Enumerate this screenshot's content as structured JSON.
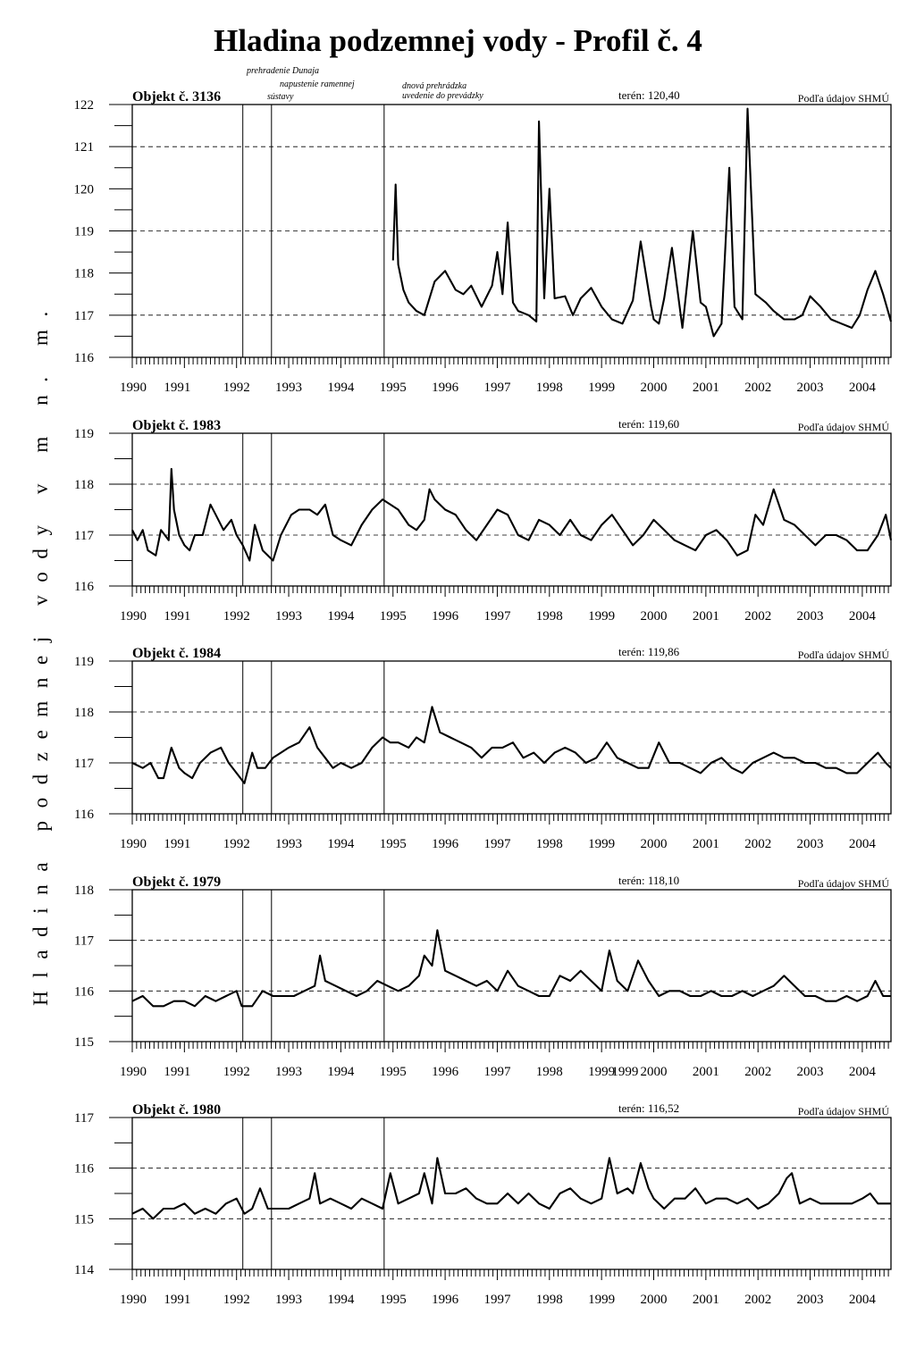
{
  "title": "Hladina podzemnej vody  - Profil č. 4",
  "ylabel": "Hladina podzemnej vody v m n. m.",
  "events": {
    "labels": [
      {
        "text": "prehradenie Dunaja",
        "x": 1992.583
      },
      {
        "text": "napustenie ramennej",
        "x": 1992.583
      },
      {
        "text": "sústavy",
        "x": 1992.583
      },
      {
        "text": "dnová prehrádzka",
        "x": 1995.0
      },
      {
        "text": "uvedenie do prevádzky",
        "x": 1995.0
      }
    ],
    "lines_x": [
      1992.12,
      1992.67,
      1994.83
    ]
  },
  "chart_data": [
    {
      "type": "line",
      "object": "Objekt č. 3136",
      "teren": "terén:  120,40",
      "source": "Podľa údajov SHMÚ",
      "ylim": [
        116,
        122
      ],
      "yticks": [
        "116",
        "117",
        "118",
        "119",
        "120",
        "121",
        "122"
      ],
      "grid_y": [
        117,
        119,
        121
      ],
      "xlim": [
        1990.0,
        2004.55
      ],
      "xticks": [
        "1990",
        "1991",
        "1992",
        "1993",
        "1994",
        "1995",
        "1996",
        "1997",
        "1998",
        "1999",
        "2000",
        "2001",
        "2002",
        "2003",
        "2004"
      ],
      "x": [
        1995.0,
        1995.05,
        1995.1,
        1995.2,
        1995.3,
        1995.45,
        1995.6,
        1995.8,
        1996.0,
        1996.2,
        1996.35,
        1996.5,
        1996.7,
        1996.9,
        1997.0,
        1997.1,
        1997.2,
        1997.3,
        1997.4,
        1997.6,
        1997.75,
        1997.8,
        1997.9,
        1998.0,
        1998.1,
        1998.3,
        1998.45,
        1998.6,
        1998.8,
        1999.0,
        1999.2,
        1999.4,
        1999.6,
        1999.75,
        1999.95,
        2000.0,
        2000.1,
        2000.2,
        2000.35,
        2000.55,
        2000.75,
        2000.9,
        2001.0,
        2001.15,
        2001.3,
        2001.45,
        2001.55,
        2001.7,
        2001.8,
        2001.95,
        2002.15,
        2002.3,
        2002.5,
        2002.7,
        2002.85,
        2003.0,
        2003.2,
        2003.4,
        2003.6,
        2003.8,
        2003.95,
        2004.1,
        2004.25,
        2004.4,
        2004.55
      ],
      "y": [
        118.3,
        120.1,
        118.2,
        117.6,
        117.3,
        117.1,
        117.0,
        117.8,
        118.05,
        117.6,
        117.5,
        117.7,
        117.2,
        117.7,
        118.5,
        117.5,
        119.2,
        117.3,
        117.1,
        117.0,
        116.85,
        121.6,
        117.4,
        120.0,
        117.4,
        117.45,
        117.0,
        117.4,
        117.65,
        117.2,
        116.9,
        116.8,
        117.35,
        118.75,
        117.2,
        116.9,
        116.8,
        117.4,
        118.6,
        116.7,
        119.0,
        117.3,
        117.2,
        116.5,
        116.8,
        120.5,
        117.2,
        116.9,
        121.9,
        117.5,
        117.3,
        117.1,
        116.9,
        116.9,
        117.0,
        117.45,
        117.2,
        116.9,
        116.8,
        116.7,
        117.0,
        117.6,
        118.05,
        117.5,
        116.85
      ]
    },
    {
      "type": "line",
      "object": "Objekt č. 1983",
      "teren": "terén:  119,60",
      "source": "Podľa údajov SHMÚ",
      "ylim": [
        116,
        119
      ],
      "yticks": [
        "116",
        "117",
        "118",
        "119"
      ],
      "grid_y": [
        117,
        118
      ],
      "xlim": [
        1990.0,
        2004.55
      ],
      "xticks": [
        "1990",
        "1991",
        "1992",
        "1993",
        "1994",
        "1995",
        "1996",
        "1997",
        "1998",
        "1999",
        "2000",
        "2001",
        "2002",
        "2003",
        "2004"
      ],
      "x": [
        1990.0,
        1990.1,
        1990.2,
        1990.3,
        1990.45,
        1990.55,
        1990.7,
        1990.75,
        1990.8,
        1990.9,
        1991.0,
        1991.1,
        1991.2,
        1991.35,
        1991.5,
        1991.6,
        1991.75,
        1991.9,
        1992.0,
        1992.12,
        1992.25,
        1992.35,
        1992.5,
        1992.7,
        1992.85,
        1993.05,
        1993.2,
        1993.4,
        1993.55,
        1993.7,
        1993.85,
        1994.0,
        1994.2,
        1994.4,
        1994.6,
        1994.8,
        1994.95,
        1995.1,
        1995.3,
        1995.45,
        1995.6,
        1995.7,
        1995.8,
        1996.0,
        1996.2,
        1996.4,
        1996.6,
        1996.8,
        1997.0,
        1997.2,
        1997.4,
        1997.6,
        1997.8,
        1998.0,
        1998.2,
        1998.4,
        1998.6,
        1998.8,
        1999.0,
        1999.2,
        1999.4,
        1999.6,
        1999.8,
        2000.0,
        2000.2,
        2000.4,
        2000.6,
        2000.8,
        2001.0,
        2001.2,
        2001.4,
        2001.6,
        2001.8,
        2001.95,
        2002.1,
        2002.3,
        2002.5,
        2002.7,
        2002.9,
        2003.1,
        2003.3,
        2003.5,
        2003.7,
        2003.9,
        2004.1,
        2004.3,
        2004.45,
        2004.55
      ],
      "y": [
        117.1,
        116.9,
        117.1,
        116.7,
        116.6,
        117.1,
        116.9,
        118.3,
        117.5,
        117.0,
        116.8,
        116.7,
        117.0,
        117.0,
        117.6,
        117.4,
        117.1,
        117.3,
        117.0,
        116.8,
        116.5,
        117.2,
        116.7,
        116.5,
        117.0,
        117.4,
        117.5,
        117.5,
        117.4,
        117.6,
        117.0,
        116.9,
        116.8,
        117.2,
        117.5,
        117.7,
        117.6,
        117.5,
        117.2,
        117.1,
        117.3,
        117.9,
        117.7,
        117.5,
        117.4,
        117.1,
        116.9,
        117.2,
        117.5,
        117.4,
        117.0,
        116.9,
        117.3,
        117.2,
        117.0,
        117.3,
        117.0,
        116.9,
        117.2,
        117.4,
        117.1,
        116.8,
        117.0,
        117.3,
        117.1,
        116.9,
        116.8,
        116.7,
        117.0,
        117.1,
        116.9,
        116.6,
        116.7,
        117.4,
        117.2,
        117.9,
        117.3,
        117.2,
        117.0,
        116.8,
        117.0,
        117.0,
        116.9,
        116.7,
        116.7,
        117.0,
        117.4,
        116.9
      ]
    },
    {
      "type": "line",
      "object": "Objekt č. 1984",
      "teren": "terén:  119,86",
      "source": "Podľa údajov SHMÚ",
      "ylim": [
        116,
        119
      ],
      "yticks": [
        "116",
        "117",
        "118",
        "119"
      ],
      "grid_y": [
        117,
        118
      ],
      "xlim": [
        1990.0,
        2004.55
      ],
      "xticks": [
        "1990",
        "1991",
        "1992",
        "1993",
        "1994",
        "1995",
        "1996",
        "1997",
        "1998",
        "1999",
        "2000",
        "2001",
        "2002",
        "2003",
        "2004"
      ],
      "x": [
        1990.0,
        1990.2,
        1990.35,
        1990.5,
        1990.6,
        1990.75,
        1990.9,
        1991.0,
        1991.15,
        1991.3,
        1991.5,
        1991.7,
        1991.85,
        1992.0,
        1992.15,
        1992.3,
        1992.4,
        1992.55,
        1992.7,
        1992.85,
        1993.0,
        1993.2,
        1993.4,
        1993.55,
        1993.7,
        1993.85,
        1994.0,
        1994.2,
        1994.4,
        1994.6,
        1994.8,
        1994.95,
        1995.1,
        1995.3,
        1995.45,
        1995.6,
        1995.75,
        1995.9,
        1996.1,
        1996.3,
        1996.5,
        1996.7,
        1996.9,
        1997.1,
        1997.3,
        1997.5,
        1997.7,
        1997.9,
        1998.1,
        1998.3,
        1998.5,
        1998.7,
        1998.9,
        1999.1,
        1999.3,
        1999.5,
        1999.7,
        1999.9,
        2000.1,
        2000.3,
        2000.5,
        2000.7,
        2000.9,
        2001.1,
        2001.3,
        2001.5,
        2001.7,
        2001.9,
        2002.1,
        2002.3,
        2002.5,
        2002.7,
        2002.9,
        2003.1,
        2003.3,
        2003.5,
        2003.7,
        2003.9,
        2004.1,
        2004.3,
        2004.45,
        2004.55
      ],
      "y": [
        117.0,
        116.9,
        117.0,
        116.7,
        116.7,
        117.3,
        116.9,
        116.8,
        116.7,
        117.0,
        117.2,
        117.3,
        117.0,
        116.8,
        116.6,
        117.2,
        116.9,
        116.9,
        117.1,
        117.2,
        117.3,
        117.4,
        117.7,
        117.3,
        117.1,
        116.9,
        117.0,
        116.9,
        117.0,
        117.3,
        117.5,
        117.4,
        117.4,
        117.3,
        117.5,
        117.4,
        118.1,
        117.6,
        117.5,
        117.4,
        117.3,
        117.1,
        117.3,
        117.3,
        117.4,
        117.1,
        117.2,
        117.0,
        117.2,
        117.3,
        117.2,
        117.0,
        117.1,
        117.4,
        117.1,
        117.0,
        116.9,
        116.9,
        117.4,
        117.0,
        117.0,
        116.9,
        116.8,
        117.0,
        117.1,
        116.9,
        116.8,
        117.0,
        117.1,
        117.2,
        117.1,
        117.1,
        117.0,
        117.0,
        116.9,
        116.9,
        116.8,
        116.8,
        117.0,
        117.2,
        117.0,
        116.9
      ]
    },
    {
      "type": "line",
      "object": "Objekt č. 1979",
      "teren": "terén:  118,10",
      "source": "Podľa údajov SHMÚ",
      "ylim": [
        115,
        118
      ],
      "yticks": [
        "115",
        "116",
        "117",
        "118"
      ],
      "grid_y": [
        116,
        117
      ],
      "xlim": [
        1990.0,
        2004.55
      ],
      "xticks": [
        "1990",
        "1991",
        "1992",
        "1993",
        "1994",
        "1995",
        "1996",
        "1997",
        "1998",
        "1999",
        "1999",
        "2000",
        "2001",
        "2002",
        "2003",
        "2004"
      ],
      "xtick_pos": [
        1990,
        1991,
        1992,
        1993,
        1994,
        1995,
        1996,
        1997,
        1998,
        1999,
        1999.45,
        2000,
        2001,
        2002,
        2003,
        2004
      ],
      "x": [
        1990.0,
        1990.2,
        1990.4,
        1990.6,
        1990.8,
        1991.0,
        1991.2,
        1991.4,
        1991.6,
        1991.8,
        1992.0,
        1992.1,
        1992.3,
        1992.5,
        1992.7,
        1992.9,
        1993.1,
        1993.3,
        1993.5,
        1993.6,
        1993.7,
        1993.9,
        1994.1,
        1994.3,
        1994.5,
        1994.7,
        1994.9,
        1995.1,
        1995.3,
        1995.5,
        1995.6,
        1995.75,
        1995.85,
        1996.0,
        1996.2,
        1996.4,
        1996.6,
        1996.8,
        1997.0,
        1997.2,
        1997.4,
        1997.6,
        1997.8,
        1998.0,
        1998.2,
        1998.4,
        1998.6,
        1998.8,
        1999.0,
        1999.15,
        1999.3,
        1999.5,
        1999.7,
        1999.9,
        2000.1,
        2000.3,
        2000.5,
        2000.7,
        2000.9,
        2001.1,
        2001.3,
        2001.5,
        2001.7,
        2001.9,
        2002.1,
        2002.3,
        2002.5,
        2002.7,
        2002.9,
        2003.1,
        2003.3,
        2003.5,
        2003.7,
        2003.9,
        2004.1,
        2004.25,
        2004.4,
        2004.55
      ],
      "y": [
        115.8,
        115.9,
        115.7,
        115.7,
        115.8,
        115.8,
        115.7,
        115.9,
        115.8,
        115.9,
        116.0,
        115.7,
        115.7,
        116.0,
        115.9,
        115.9,
        115.9,
        116.0,
        116.1,
        116.7,
        116.2,
        116.1,
        116.0,
        115.9,
        116.0,
        116.2,
        116.1,
        116.0,
        116.1,
        116.3,
        116.7,
        116.5,
        117.2,
        116.4,
        116.3,
        116.2,
        116.1,
        116.2,
        116.0,
        116.4,
        116.1,
        116.0,
        115.9,
        115.9,
        116.3,
        116.2,
        116.4,
        116.2,
        116.0,
        116.8,
        116.2,
        116.0,
        116.6,
        116.2,
        115.9,
        116.0,
        116.0,
        115.9,
        115.9,
        116.0,
        115.9,
        115.9,
        116.0,
        115.9,
        116.0,
        116.1,
        116.3,
        116.1,
        115.9,
        115.9,
        115.8,
        115.8,
        115.9,
        115.8,
        115.9,
        116.2,
        115.9,
        115.9
      ]
    },
    {
      "type": "line",
      "object": "Objekt č. 1980",
      "teren": "terén:  116,52",
      "source": "Podľa údajov SHMÚ",
      "ylim": [
        114,
        117
      ],
      "yticks": [
        "114",
        "115",
        "116",
        "117"
      ],
      "grid_y": [
        115,
        116
      ],
      "xlim": [
        1990.0,
        2004.55
      ],
      "xticks": [
        "1990",
        "1991",
        "1992",
        "1993",
        "1994",
        "1995",
        "1996",
        "1997",
        "1998",
        "1999",
        "2000",
        "2001",
        "2002",
        "2003",
        "2004"
      ],
      "x": [
        1990.0,
        1990.2,
        1990.4,
        1990.6,
        1990.8,
        1991.0,
        1991.2,
        1991.4,
        1991.6,
        1991.8,
        1992.0,
        1992.15,
        1992.3,
        1992.45,
        1992.6,
        1992.8,
        1993.0,
        1993.2,
        1993.4,
        1993.5,
        1993.6,
        1993.8,
        1994.0,
        1994.2,
        1994.4,
        1994.6,
        1994.8,
        1994.95,
        1995.1,
        1995.3,
        1995.5,
        1995.6,
        1995.75,
        1995.85,
        1996.0,
        1996.2,
        1996.4,
        1996.6,
        1996.8,
        1997.0,
        1997.2,
        1997.4,
        1997.6,
        1997.8,
        1998.0,
        1998.2,
        1998.4,
        1998.6,
        1998.8,
        1999.0,
        1999.15,
        1999.3,
        1999.5,
        1999.6,
        1999.75,
        1999.9,
        2000.0,
        2000.2,
        2000.4,
        2000.6,
        2000.8,
        2001.0,
        2001.2,
        2001.4,
        2001.6,
        2001.8,
        2002.0,
        2002.2,
        2002.4,
        2002.55,
        2002.65,
        2002.8,
        2003.0,
        2003.2,
        2003.4,
        2003.6,
        2003.8,
        2004.0,
        2004.15,
        2004.3,
        2004.45,
        2004.55
      ],
      "y": [
        115.1,
        115.2,
        115.0,
        115.2,
        115.2,
        115.3,
        115.1,
        115.2,
        115.1,
        115.3,
        115.4,
        115.1,
        115.2,
        115.6,
        115.2,
        115.2,
        115.2,
        115.3,
        115.4,
        115.9,
        115.3,
        115.4,
        115.3,
        115.2,
        115.4,
        115.3,
        115.2,
        115.9,
        115.3,
        115.4,
        115.5,
        115.9,
        115.3,
        116.2,
        115.5,
        115.5,
        115.6,
        115.4,
        115.3,
        115.3,
        115.5,
        115.3,
        115.5,
        115.3,
        115.2,
        115.5,
        115.6,
        115.4,
        115.3,
        115.4,
        116.2,
        115.5,
        115.6,
        115.5,
        116.1,
        115.6,
        115.4,
        115.2,
        115.4,
        115.4,
        115.6,
        115.3,
        115.4,
        115.4,
        115.3,
        115.4,
        115.2,
        115.3,
        115.5,
        115.8,
        115.9,
        115.3,
        115.4,
        115.3,
        115.3,
        115.3,
        115.3,
        115.4,
        115.5,
        115.3,
        115.3,
        115.3
      ]
    }
  ]
}
